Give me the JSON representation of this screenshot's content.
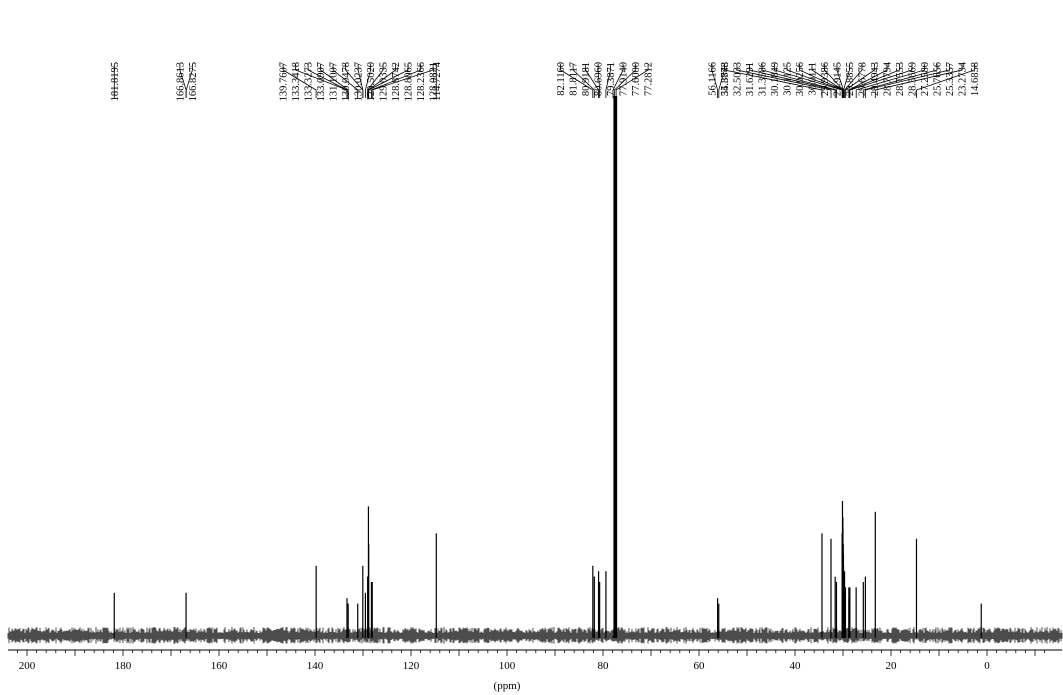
{
  "chart_data": {
    "type": "line",
    "title": "",
    "xlabel": "(ppm)",
    "ylabel": "",
    "xlim": [
      203,
      -13
    ],
    "x_direction": "reversed",
    "grid": false,
    "legend": "none",
    "line_color": "#000000",
    "x_ticks": [
      200,
      180,
      160,
      140,
      120,
      100,
      80,
      60,
      40,
      20,
      0
    ],
    "x_tick_labels": [
      "200",
      "180",
      "160",
      "140",
      "120",
      "100",
      "80",
      "60",
      "40",
      "20",
      "0"
    ],
    "x_minor_tick_step": 2,
    "peak_groups": [
      {
        "labels": [
          "181.8195"
        ]
      },
      {
        "labels": [
          "166.8613",
          "166.8275"
        ]
      },
      {
        "labels": [
          "139.7607",
          "133.3418",
          "133.3273",
          "133.0907",
          "131.1007",
          "130.0478",
          "130.0237",
          "129.5020",
          "129.0335",
          "128.8742",
          "128.8065",
          "128.2366",
          "128.0821"
        ]
      },
      {
        "labels": [
          "114.7274"
        ]
      },
      {
        "labels": [
          "82.1160",
          "81.8117",
          "80.9181",
          "80.6960",
          "79.3871",
          "77.9140",
          "77.6000",
          "77.2812"
        ]
      },
      {
        "labels": [
          "56.1166",
          "55.8848"
        ]
      },
      {
        "labels": [
          "34.3773",
          "32.5033",
          "31.6291",
          "31.3586",
          "30.1849",
          "30.1125",
          "30.0256",
          "30.0111",
          "29.9386",
          "29.9145",
          "29.8855",
          "29.6778",
          "29.4943",
          "28.7794",
          "28.7553",
          "28.5669",
          "27.2580",
          "25.7656",
          "25.3357",
          "23.2734",
          "14.6858"
        ]
      }
    ],
    "peaks": [
      {
        "x": 181.82,
        "y": 0.08
      },
      {
        "x": 166.86,
        "y": 0.08
      },
      {
        "x": 139.76,
        "y": 0.13
      },
      {
        "x": 133.34,
        "y": 0.07
      },
      {
        "x": 133.09,
        "y": 0.06
      },
      {
        "x": 131.1,
        "y": 0.06
      },
      {
        "x": 130.04,
        "y": 0.13
      },
      {
        "x": 129.5,
        "y": 0.08
      },
      {
        "x": 129.03,
        "y": 0.11
      },
      {
        "x": 128.87,
        "y": 0.24
      },
      {
        "x": 128.81,
        "y": 0.17
      },
      {
        "x": 128.24,
        "y": 0.1
      },
      {
        "x": 128.08,
        "y": 0.1
      },
      {
        "x": 114.73,
        "y": 0.19
      },
      {
        "x": 82.12,
        "y": 0.13
      },
      {
        "x": 81.81,
        "y": 0.11
      },
      {
        "x": 80.92,
        "y": 0.12
      },
      {
        "x": 80.7,
        "y": 0.1
      },
      {
        "x": 79.39,
        "y": 0.12
      },
      {
        "x": 77.91,
        "y": 0.0
      },
      {
        "x": 77.6,
        "y": 1.0
      },
      {
        "x": 77.28,
        "y": 1.0
      },
      {
        "x": 56.12,
        "y": 0.07
      },
      {
        "x": 55.88,
        "y": 0.06
      },
      {
        "x": 34.38,
        "y": 0.19
      },
      {
        "x": 32.5,
        "y": 0.18
      },
      {
        "x": 31.63,
        "y": 0.11
      },
      {
        "x": 31.36,
        "y": 0.1
      },
      {
        "x": 30.18,
        "y": 0.19
      },
      {
        "x": 30.11,
        "y": 0.25
      },
      {
        "x": 30.03,
        "y": 0.22
      },
      {
        "x": 30.01,
        "y": 0.2
      },
      {
        "x": 29.94,
        "y": 0.17
      },
      {
        "x": 29.91,
        "y": 0.15
      },
      {
        "x": 29.89,
        "y": 0.13
      },
      {
        "x": 29.68,
        "y": 0.12
      },
      {
        "x": 29.49,
        "y": 0.09
      },
      {
        "x": 28.78,
        "y": 0.09
      },
      {
        "x": 28.76,
        "y": 0.07
      },
      {
        "x": 28.57,
        "y": 0.09
      },
      {
        "x": 27.26,
        "y": 0.09
      },
      {
        "x": 25.77,
        "y": 0.1
      },
      {
        "x": 25.34,
        "y": 0.11
      },
      {
        "x": 23.27,
        "y": 0.23
      },
      {
        "x": 14.69,
        "y": 0.18
      },
      {
        "x": 1.2,
        "y": 0.06
      }
    ]
  }
}
